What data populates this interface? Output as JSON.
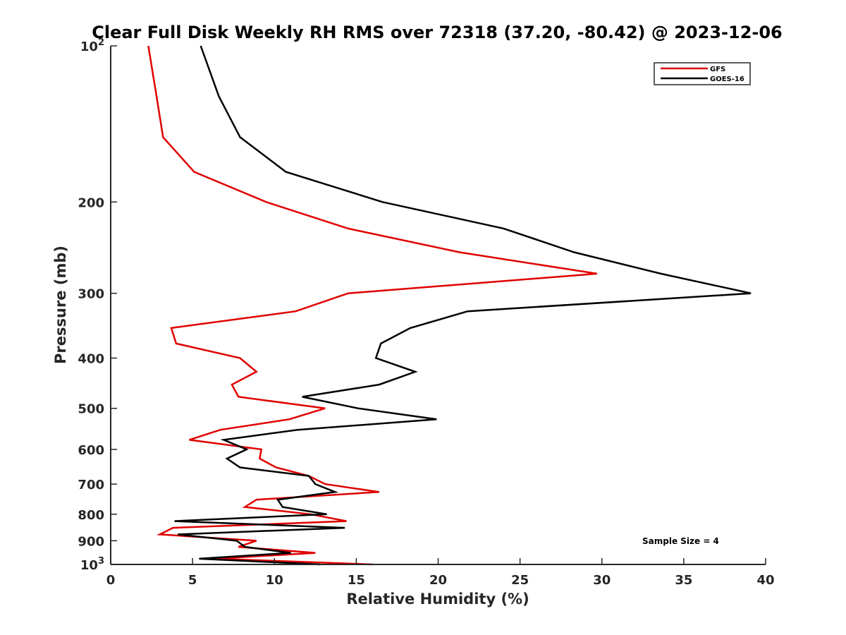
{
  "chart_data": {
    "type": "line",
    "title": "Clear Full Disk Weekly RH RMS over 72318 (37.20, -80.42) @ 2023-12-06",
    "xlabel": "Relative Humidity (%)",
    "ylabel": "Pressure (mb)",
    "xlim": [
      0,
      40
    ],
    "ylim": [
      100,
      1000
    ],
    "yscale": "log",
    "y_reversed": true,
    "grid": false,
    "legend_position": "top-right",
    "x_ticks": [
      "0",
      "5",
      "10",
      "15",
      "20",
      "25",
      "30",
      "35",
      "40"
    ],
    "y_ticks": [
      {
        "value": 100,
        "base": "10",
        "exp": "2"
      },
      {
        "value": 200,
        "label": "200"
      },
      {
        "value": 300,
        "label": "300"
      },
      {
        "value": 400,
        "label": "400"
      },
      {
        "value": 500,
        "label": "500"
      },
      {
        "value": 600,
        "label": "600"
      },
      {
        "value": 700,
        "label": "700"
      },
      {
        "value": 800,
        "label": "800"
      },
      {
        "value": 900,
        "label": "900"
      },
      {
        "value": 1000,
        "base": "10",
        "exp": "3"
      }
    ],
    "annotation": "Sample Size = 4",
    "series": [
      {
        "name": "GFS",
        "color": "#e00000",
        "points": [
          [
            2.3,
            100
          ],
          [
            2.8,
            125
          ],
          [
            3.2,
            150
          ],
          [
            5.1,
            175
          ],
          [
            9.5,
            200
          ],
          [
            14.5,
            225
          ],
          [
            21.3,
            250
          ],
          [
            29.7,
            275
          ],
          [
            14.5,
            300
          ],
          [
            11.3,
            325
          ],
          [
            3.7,
            350
          ],
          [
            4.0,
            375
          ],
          [
            7.9,
            400
          ],
          [
            8.9,
            425
          ],
          [
            7.4,
            450
          ],
          [
            7.8,
            475
          ],
          [
            13.1,
            500
          ],
          [
            10.9,
            525
          ],
          [
            6.7,
            550
          ],
          [
            4.8,
            575
          ],
          [
            9.2,
            600
          ],
          [
            9.1,
            625
          ],
          [
            10.1,
            650
          ],
          [
            12.1,
            675
          ],
          [
            13.1,
            700
          ],
          [
            16.4,
            725
          ],
          [
            8.9,
            750
          ],
          [
            8.2,
            775
          ],
          [
            12.2,
            800
          ],
          [
            14.4,
            825
          ],
          [
            3.8,
            850
          ],
          [
            3.0,
            875
          ],
          [
            8.9,
            900
          ],
          [
            7.8,
            925
          ],
          [
            12.5,
            950
          ],
          [
            6.4,
            975
          ],
          [
            16.0,
            1000
          ]
        ]
      },
      {
        "name": "GOES-16",
        "color": "#000000",
        "points": [
          [
            5.5,
            100
          ],
          [
            6.6,
            125
          ],
          [
            7.9,
            150
          ],
          [
            10.7,
            175
          ],
          [
            16.6,
            200
          ],
          [
            24.0,
            225
          ],
          [
            28.3,
            250
          ],
          [
            33.6,
            275
          ],
          [
            39.1,
            300
          ],
          [
            21.8,
            325
          ],
          [
            18.3,
            350
          ],
          [
            16.5,
            375
          ],
          [
            16.2,
            400
          ],
          [
            18.6,
            425
          ],
          [
            16.4,
            450
          ],
          [
            11.7,
            475
          ],
          [
            15.1,
            500
          ],
          [
            19.9,
            525
          ],
          [
            11.4,
            550
          ],
          [
            6.9,
            575
          ],
          [
            8.3,
            600
          ],
          [
            7.1,
            625
          ],
          [
            7.9,
            650
          ],
          [
            12.1,
            675
          ],
          [
            12.5,
            700
          ],
          [
            13.7,
            725
          ],
          [
            10.2,
            750
          ],
          [
            10.5,
            775
          ],
          [
            13.2,
            800
          ],
          [
            3.9,
            825
          ],
          [
            14.3,
            850
          ],
          [
            4.1,
            875
          ],
          [
            7.7,
            900
          ],
          [
            8.2,
            925
          ],
          [
            11.0,
            950
          ],
          [
            5.4,
            975
          ],
          [
            12.8,
            1000
          ]
        ]
      }
    ]
  }
}
